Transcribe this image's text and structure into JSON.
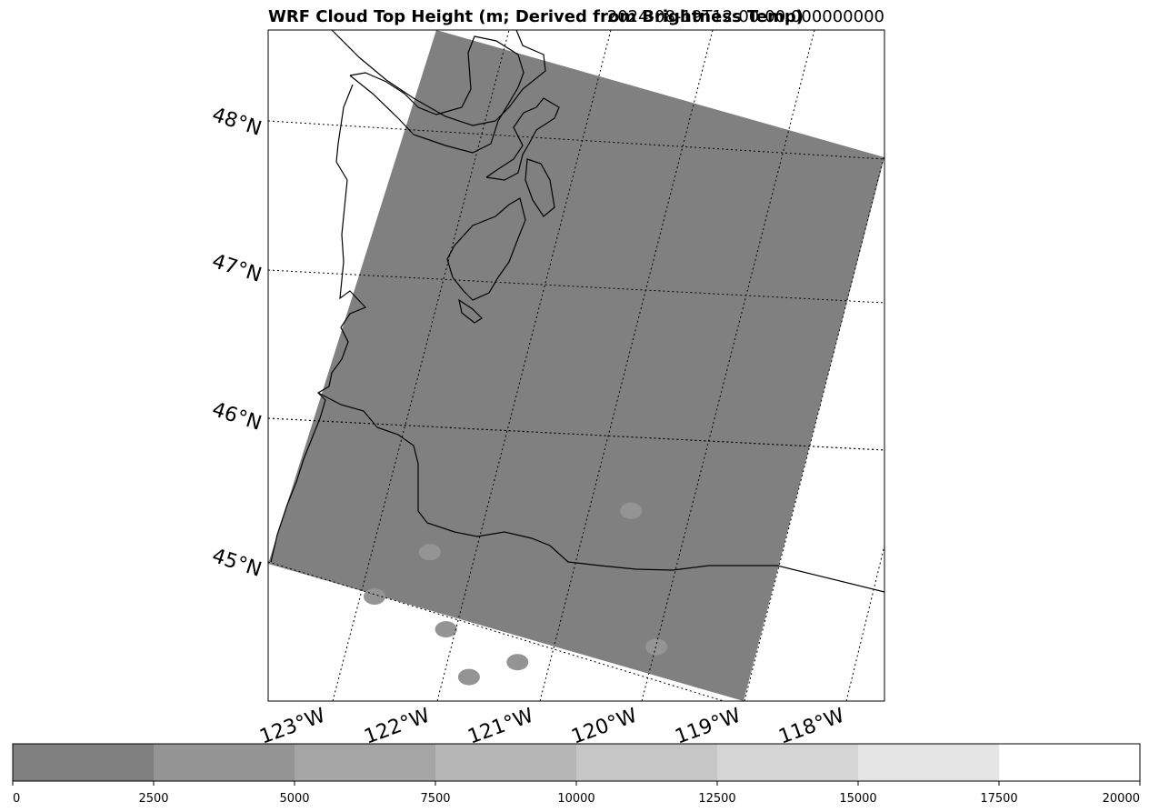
{
  "chart_data": {
    "type": "heatmap",
    "title": "WRF Cloud Top Height (m; Derived from Brightness Temp)",
    "timestamp": "2024-08-19T12:00:00.000000000",
    "map": {
      "projection": "lambert_conformal",
      "lat_gridlines": [
        45,
        46,
        47,
        48
      ],
      "lon_gridlines": [
        -123,
        -122,
        -121,
        -120,
        -119,
        -118
      ],
      "lat_labels": [
        "45°N",
        "46°N",
        "47°N",
        "48°N"
      ],
      "lon_labels": [
        "123°W",
        "122°W",
        "121°W",
        "120°W",
        "119°W",
        "118°W"
      ],
      "domain_fill_value_m": 0,
      "cloud_patches": [
        {
          "lon": -122.2,
          "lat": 45.4,
          "value_m": 3000
        },
        {
          "lon": -122.6,
          "lat": 45.0,
          "value_m": 3500
        },
        {
          "lon": -121.9,
          "lat": 44.95,
          "value_m": 3200
        },
        {
          "lon": -121.6,
          "lat": 44.7,
          "value_m": 3000
        },
        {
          "lon": -121.2,
          "lat": 44.9,
          "value_m": 3300
        },
        {
          "lon": -120.5,
          "lat": 46.1,
          "value_m": 3000
        },
        {
          "lon": -120.0,
          "lat": 45.3,
          "value_m": 2800
        }
      ]
    },
    "colorbar": {
      "vmin": 0,
      "vmax": 20000,
      "bounds": [
        0,
        2500,
        5000,
        7500,
        10000,
        12500,
        15000,
        17500,
        20000
      ],
      "tick_labels": [
        "0",
        "2500",
        "5000",
        "7500",
        "10000",
        "12500",
        "15000",
        "17500",
        "20000"
      ],
      "colors": [
        "#808080",
        "#949494",
        "#a5a5a5",
        "#b6b6b6",
        "#c6c6c6",
        "#d5d5d5",
        "#e5e5e5",
        "#ffffff"
      ]
    },
    "grid": true
  }
}
